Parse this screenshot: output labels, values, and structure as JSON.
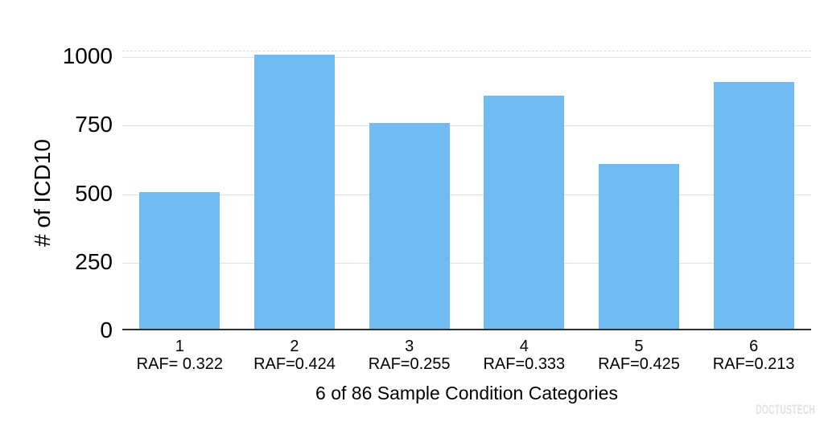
{
  "chart_data": {
    "type": "bar",
    "title": "",
    "categories": [
      "1",
      "2",
      "3",
      "4",
      "5",
      "6"
    ],
    "category_sublabels": [
      "RAF= 0.322",
      "RAF=0.424",
      "RAF=0.255",
      "RAF=0.333",
      "RAF=0.425",
      "RAF=0.213"
    ],
    "values": [
      500,
      1000,
      750,
      850,
      600,
      900
    ],
    "xlabel": "6 of 86 Sample Condition Categories",
    "ylabel": "# of ICD10",
    "yticks": [
      0,
      250,
      500,
      750,
      1000
    ],
    "ylim": [
      0,
      1000
    ],
    "grid": true,
    "legend_position": "none",
    "bar_color": "#6FBBF2"
  },
  "watermark": {
    "label": "DOCTUSTECH"
  },
  "colors": {
    "bar": "#6FBBF2",
    "gridline": "#E2E2E2",
    "axis_baseline": "#303030",
    "dashed_top_border": "#DCDCDC",
    "text": "#000000",
    "watermark_text": "#E2E2E2",
    "background": "#FFFFFF"
  }
}
